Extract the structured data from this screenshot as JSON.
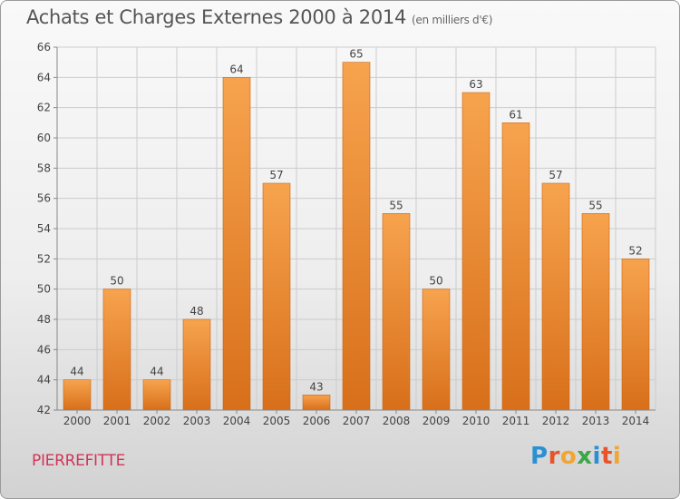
{
  "title": "Achats et Charges Externes 2000 à 2014",
  "subtitle": "(en milliers d'€)",
  "commune": "PIERREFITTE",
  "logo": {
    "text": "Proxiti",
    "letters": [
      {
        "char": "P",
        "color": "#2b8fd4"
      },
      {
        "char": "r",
        "color": "#e8542a"
      },
      {
        "char": "o",
        "color": "#f2a531"
      },
      {
        "char": "x",
        "color": "#3aa847"
      },
      {
        "char": "i",
        "color": "#2b8fd4"
      },
      {
        "char": "t",
        "color": "#e8542a"
      },
      {
        "char": "i",
        "color": "#f2a531"
      }
    ]
  },
  "colors": {
    "bar_top": "#f7a34e",
    "bar_bottom": "#d86f1a",
    "grid": "#cccccc",
    "axis_text": "#444444"
  },
  "chart_data": {
    "type": "bar",
    "title": "Achats et Charges Externes 2000 à 2014",
    "subtitle": "(en milliers d'€)",
    "xlabel": "",
    "ylabel": "",
    "categories": [
      "2000",
      "2001",
      "2002",
      "2003",
      "2004",
      "2005",
      "2006",
      "2007",
      "2008",
      "2009",
      "2010",
      "2011",
      "2012",
      "2013",
      "2014"
    ],
    "values": [
      44,
      50,
      44,
      48,
      64,
      57,
      43,
      65,
      55,
      50,
      63,
      61,
      57,
      55,
      52
    ],
    "ylim": [
      42,
      66
    ],
    "yticks": [
      42,
      44,
      46,
      48,
      50,
      52,
      54,
      56,
      58,
      60,
      62,
      64,
      66
    ],
    "grid": true,
    "legend": "none"
  }
}
